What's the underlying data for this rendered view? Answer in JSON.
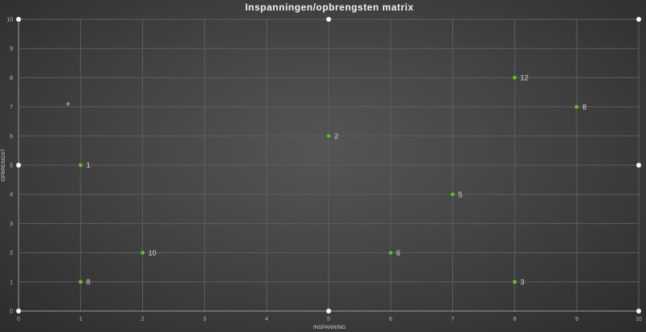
{
  "chart_data": {
    "type": "scatter",
    "title": "Inspanningen/opbrengsten matrix",
    "xlabel": "INSPANNING",
    "ylabel": "OPBRENGST",
    "xlim": [
      0,
      10
    ],
    "ylim": [
      0,
      10
    ],
    "xticks": [
      "0",
      "1",
      "2",
      "3",
      "4",
      "5",
      "6",
      "7",
      "8",
      "9",
      "10"
    ],
    "yticks": [
      "0",
      "1",
      "2",
      "3",
      "4",
      "5",
      "6",
      "7",
      "8",
      "9",
      "10"
    ],
    "grid": true,
    "series": [
      {
        "color": "#70b23a",
        "points": [
          {
            "x": 1,
            "y": 5,
            "label": "1"
          },
          {
            "x": 5,
            "y": 6,
            "label": "2"
          },
          {
            "x": 8,
            "y": 1,
            "label": "3"
          },
          {
            "x": 7,
            "y": 4,
            "label": "5"
          },
          {
            "x": 6,
            "y": 2,
            "label": "6"
          },
          {
            "x": 1,
            "y": 1,
            "label": "8"
          },
          {
            "x": 9,
            "y": 7,
            "label": "8"
          },
          {
            "x": 2,
            "y": 2,
            "label": "10"
          },
          {
            "x": 8,
            "y": 8,
            "label": "12"
          }
        ]
      },
      {
        "color": "#7b7bff",
        "points": [
          {
            "x": 0.8,
            "y": 7.1,
            "label": ""
          }
        ]
      }
    ]
  }
}
